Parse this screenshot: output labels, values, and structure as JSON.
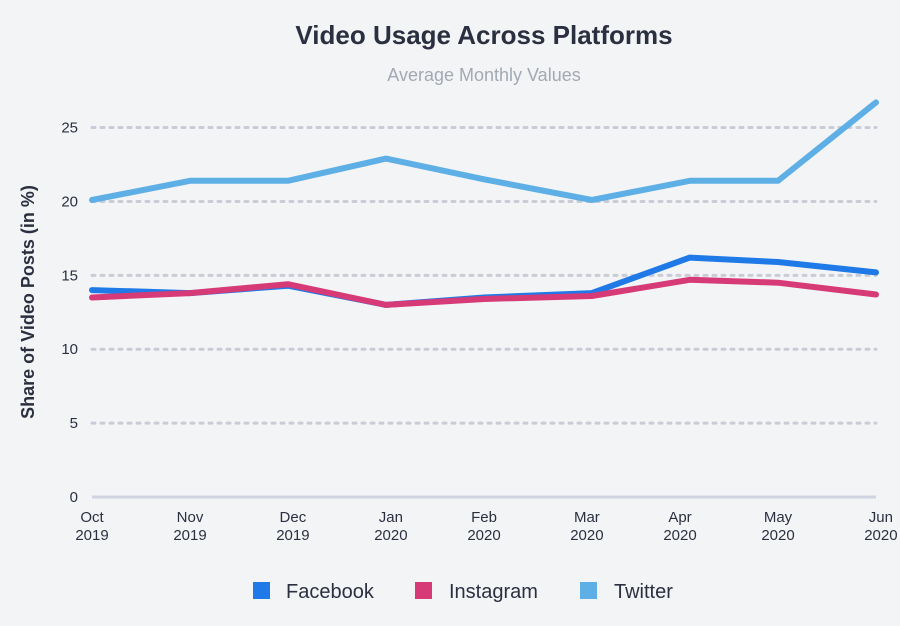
{
  "chart_data": {
    "type": "line",
    "title": "Video Usage Across Platforms",
    "subtitle": "Average Monthly Values",
    "xlabel": "",
    "ylabel": "Share of Video Posts (in %)",
    "categories": [
      [
        "Oct",
        "2019"
      ],
      [
        "Nov",
        "2019"
      ],
      [
        "Dec",
        "2019"
      ],
      [
        "Jan",
        "2020"
      ],
      [
        "Feb",
        "2020"
      ],
      [
        "Mar",
        "2020"
      ],
      [
        "Apr",
        "2020"
      ],
      [
        "May",
        "2020"
      ],
      [
        "Jun",
        "2020"
      ]
    ],
    "x": [
      0,
      1,
      2.05,
      3.05,
      4,
      5.05,
      6,
      7,
      8.05
    ],
    "ylim": [
      0,
      27
    ],
    "yticks": [
      0,
      5,
      10,
      15,
      20,
      25
    ],
    "grid": true,
    "legend_position": "bottom",
    "series": [
      {
        "name": "Facebook",
        "color": "#1f7ae8",
        "x": [
          0,
          1,
          2,
          3,
          4,
          5.1,
          6.1,
          7,
          8
        ],
        "values": [
          14.0,
          13.8,
          14.3,
          13.0,
          13.5,
          13.8,
          16.2,
          15.9,
          15.2
        ]
      },
      {
        "name": "Instagram",
        "color": "#d63a77",
        "x": [
          0,
          1,
          2,
          3,
          4,
          5.1,
          6.1,
          7,
          8
        ],
        "values": [
          13.5,
          13.8,
          14.4,
          13.0,
          13.4,
          13.6,
          14.7,
          14.5,
          13.7
        ]
      },
      {
        "name": "Twitter",
        "color": "#5eafe6",
        "x": [
          0,
          1,
          2,
          3,
          4,
          5.1,
          6.1,
          7,
          8
        ],
        "values": [
          20.1,
          21.4,
          21.4,
          22.9,
          21.5,
          20.1,
          21.4,
          21.4,
          26.7
        ]
      }
    ]
  }
}
